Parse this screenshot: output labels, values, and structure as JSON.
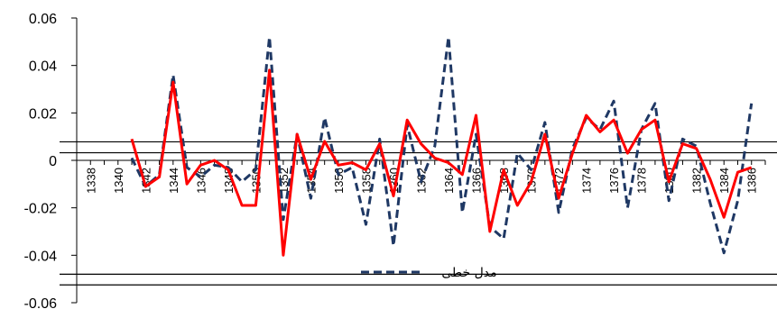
{
  "chart_data": {
    "type": "line",
    "title": "",
    "xlabel": "",
    "ylabel": "",
    "ylim": [
      -0.06,
      0.06
    ],
    "xlim": [
      1337,
      1387
    ],
    "y_ticks": [
      "0.06",
      "0.04",
      "0.02",
      "0",
      "-0.02",
      "-0.04",
      "-0.06"
    ],
    "y_tick_values": [
      0.06,
      0.04,
      0.02,
      0,
      -0.02,
      -0.04,
      -0.06
    ],
    "x_ticks": [
      "1338",
      "1340",
      "1342",
      "1344",
      "1346",
      "1348",
      "1350",
      "1352",
      "1354",
      "1356",
      "1358",
      "1360",
      "1362",
      "1364",
      "1366",
      "1368",
      "1370",
      "1372",
      "1374",
      "1376",
      "1378",
      "1380",
      "1382",
      "1384",
      "1386"
    ],
    "x_tick_values": [
      1338,
      1340,
      1342,
      1344,
      1346,
      1348,
      1350,
      1352,
      1354,
      1356,
      1358,
      1360,
      1362,
      1364,
      1366,
      1368,
      1370,
      1372,
      1374,
      1376,
      1378,
      1380,
      1382,
      1384,
      1386
    ],
    "grid": false,
    "legend": {
      "placement": "bottom",
      "visible_entry": "مدل خطی"
    },
    "reference_lines_y": [
      0.0078,
      0.0032,
      -0.048,
      -0.0525
    ],
    "series": [
      {
        "name": "مدل خطی",
        "color": "#1f3864",
        "style": "dashed",
        "x": [
          1341,
          1342,
          1343,
          1344,
          1345,
          1346,
          1347,
          1348,
          1349,
          1350,
          1351,
          1352,
          1353,
          1354,
          1355,
          1356,
          1357,
          1358,
          1359,
          1360,
          1361,
          1362,
          1363,
          1364,
          1365,
          1366,
          1367,
          1368,
          1369,
          1370,
          1371,
          1372,
          1373,
          1374,
          1375,
          1376,
          1377,
          1378,
          1379,
          1380,
          1381,
          1382,
          1383,
          1384,
          1385,
          1386
        ],
        "values": [
          0.001,
          -0.011,
          -0.006,
          0.036,
          -0.003,
          -0.007,
          -0.002,
          -0.003,
          -0.009,
          -0.004,
          0.052,
          -0.025,
          0.011,
          -0.016,
          0.018,
          -0.006,
          -0.003,
          -0.027,
          0.009,
          -0.036,
          0.015,
          -0.009,
          0.006,
          0.052,
          -0.022,
          0.011,
          -0.028,
          -0.033,
          0.003,
          -0.004,
          0.016,
          -0.022,
          0.005,
          0.018,
          0.013,
          0.025,
          -0.02,
          0.013,
          0.024,
          -0.017,
          0.009,
          0.006,
          -0.018,
          -0.039,
          -0.017,
          0.024
        ]
      },
      {
        "name": "",
        "color": "#ff0000",
        "style": "solid",
        "x": [
          1341,
          1342,
          1343,
          1344,
          1345,
          1346,
          1347,
          1348,
          1349,
          1350,
          1351,
          1352,
          1353,
          1354,
          1355,
          1356,
          1357,
          1358,
          1359,
          1360,
          1361,
          1362,
          1363,
          1364,
          1365,
          1366,
          1367,
          1368,
          1369,
          1370,
          1371,
          1372,
          1373,
          1374,
          1375,
          1376,
          1377,
          1378,
          1379,
          1380,
          1381,
          1382,
          1383,
          1384,
          1385,
          1386
        ],
        "values": [
          0.009,
          -0.011,
          -0.007,
          0.033,
          -0.01,
          -0.002,
          0.0,
          -0.004,
          -0.019,
          -0.019,
          0.038,
          -0.04,
          0.011,
          -0.008,
          0.008,
          -0.002,
          -0.001,
          -0.004,
          0.007,
          -0.015,
          0.017,
          0.007,
          0.001,
          -0.001,
          -0.006,
          0.019,
          -0.03,
          -0.004,
          -0.019,
          -0.009,
          0.011,
          -0.016,
          0.003,
          0.019,
          0.012,
          0.017,
          0.003,
          0.013,
          0.017,
          -0.009,
          0.007,
          0.005,
          -0.008,
          -0.024,
          -0.005,
          -0.003
        ]
      }
    ]
  }
}
